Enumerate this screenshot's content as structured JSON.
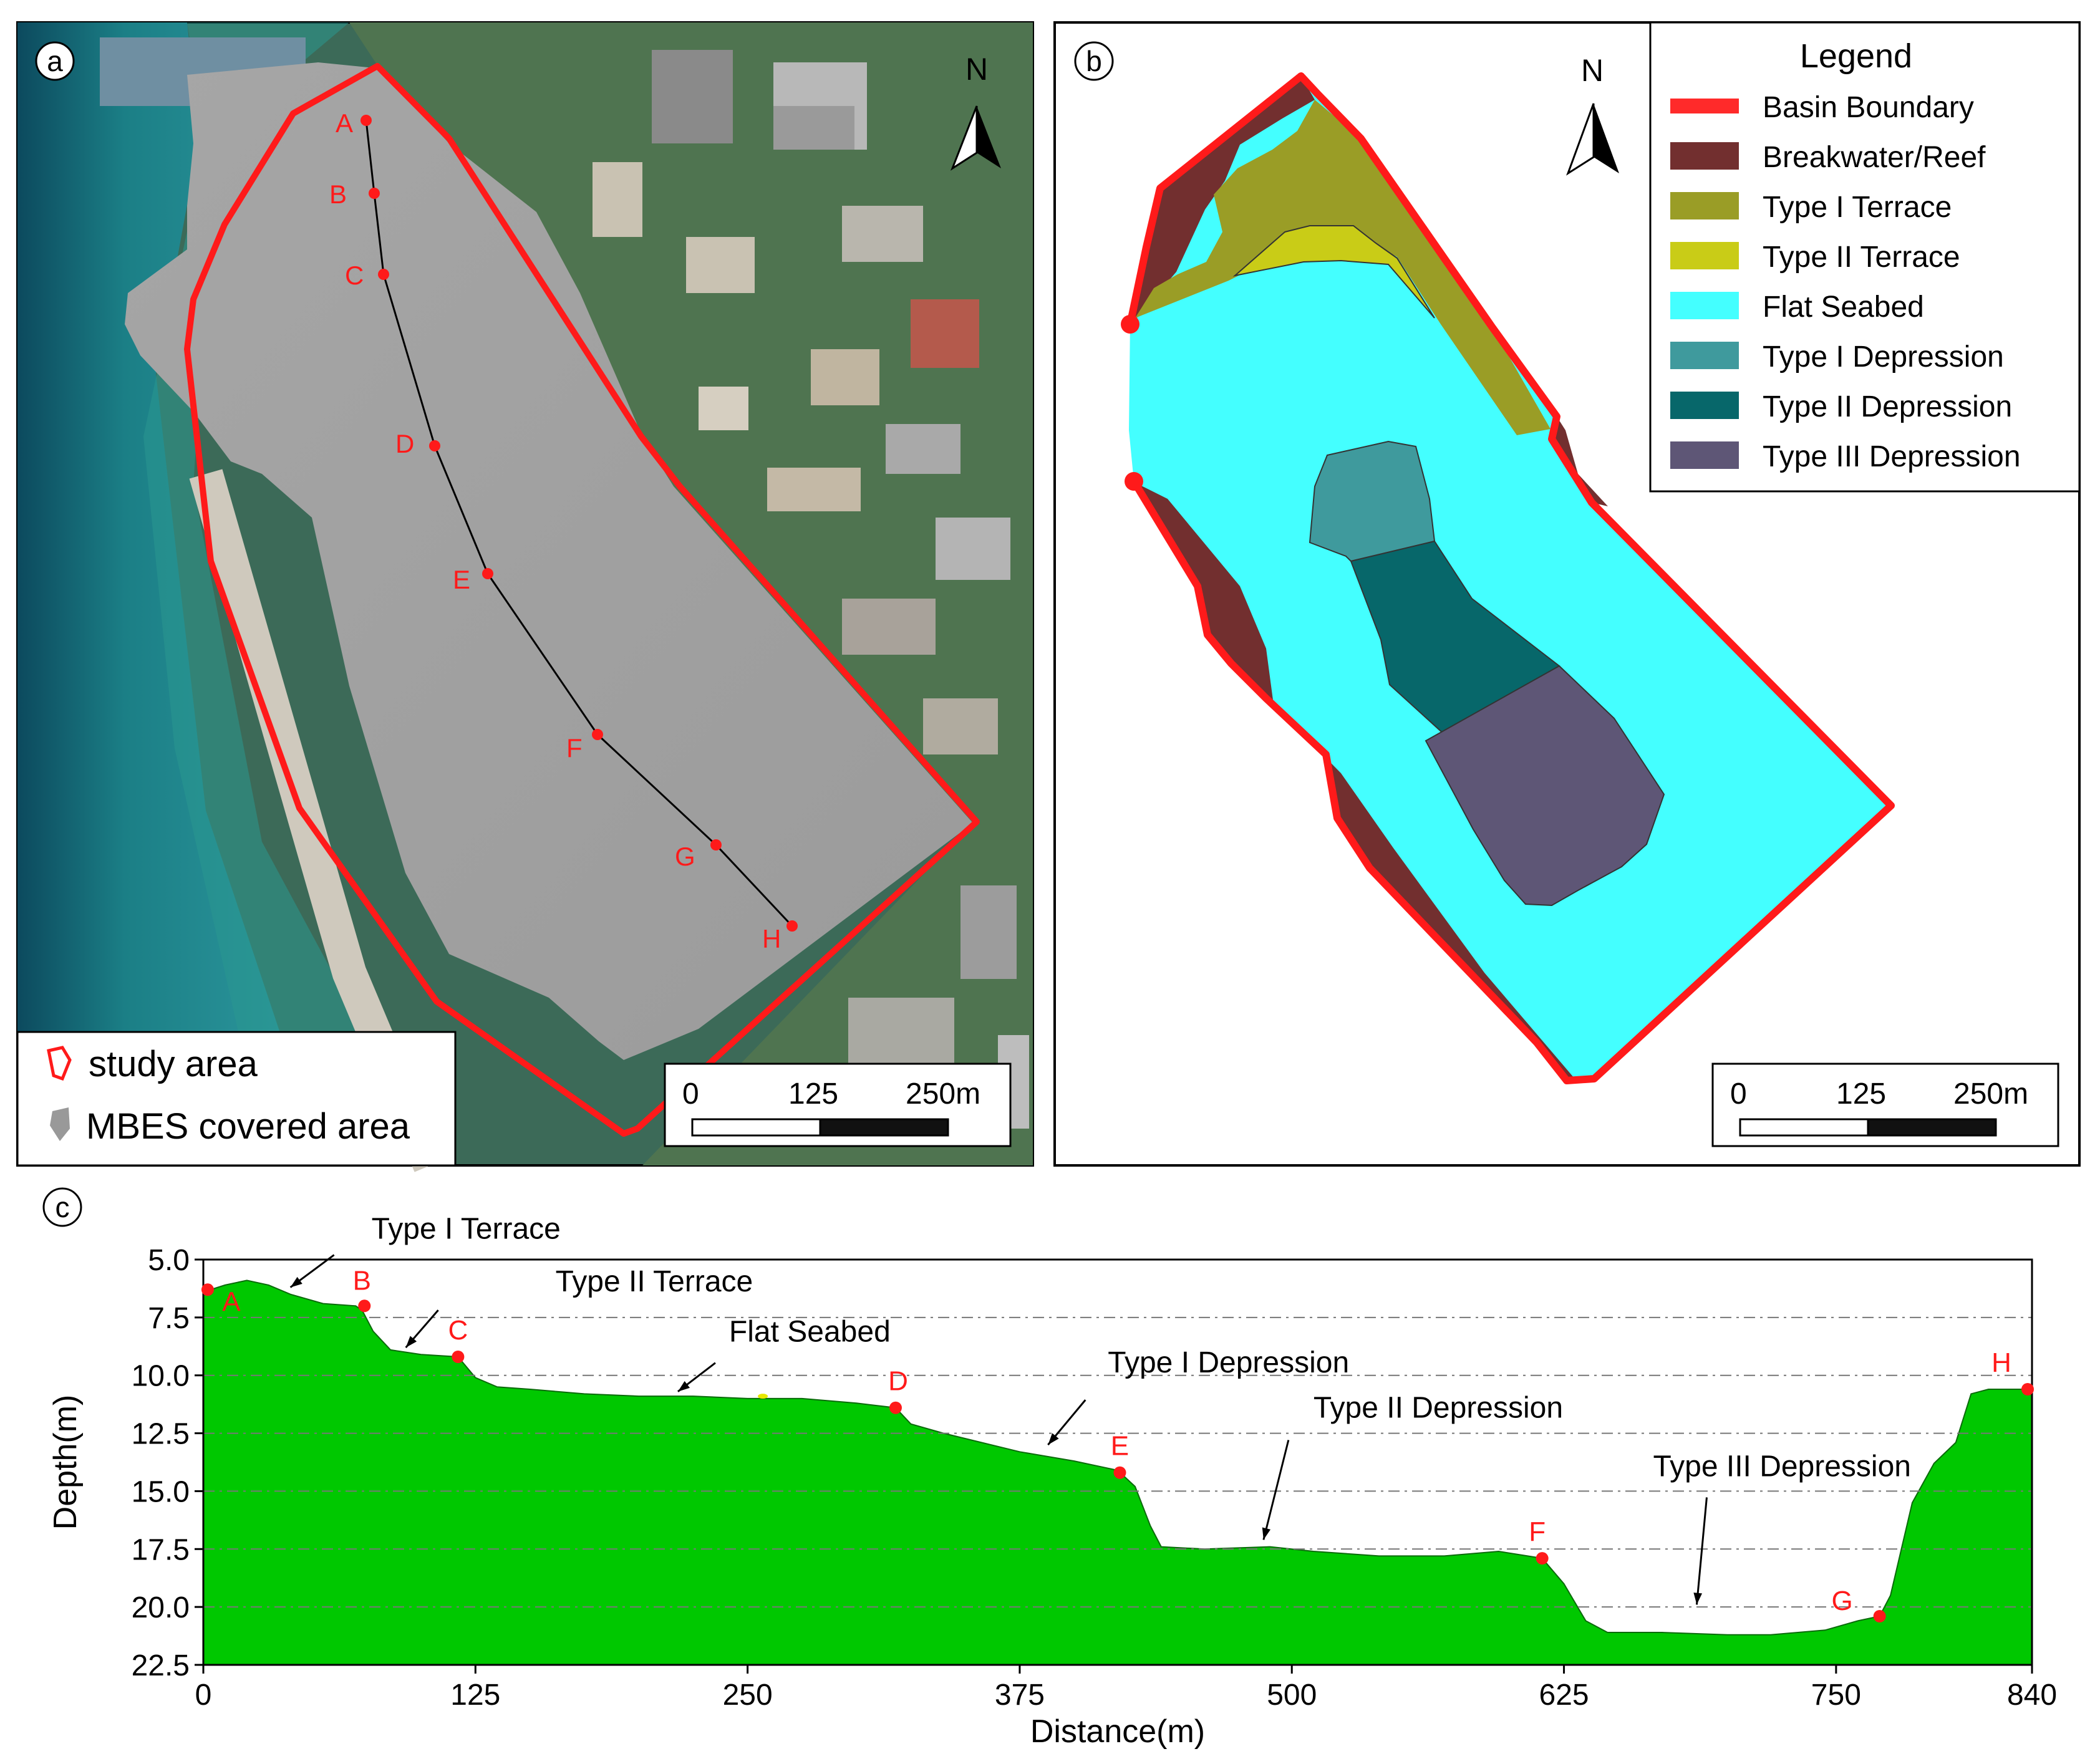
{
  "panel_a": {
    "letter": "a",
    "north_label": "N",
    "points": [
      "A",
      "B",
      "C",
      "D",
      "E",
      "F",
      "G",
      "H"
    ],
    "legend": {
      "study_area": "study area",
      "mbes": "MBES covered area"
    },
    "scale": [
      "0",
      "125",
      "250m"
    ]
  },
  "panel_b": {
    "letter": "b",
    "north_label": "N",
    "legend_title": "Legend",
    "legend_items": [
      {
        "label": "Basin Boundary",
        "color": "#ff2a2a",
        "kind": "line"
      },
      {
        "label": "Breakwater/Reef",
        "color": "#722f2f",
        "kind": "box"
      },
      {
        "label": "Type I Terrace",
        "color": "#9a9d26",
        "kind": "box"
      },
      {
        "label": "Type II Terrace",
        "color": "#c9cc17",
        "kind": "box"
      },
      {
        "label": "Flat Seabed",
        "color": "#44ffff",
        "kind": "box"
      },
      {
        "label": "Type I Depression",
        "color": "#3f9a9d",
        "kind": "box"
      },
      {
        "label": "Type II Depression",
        "color": "#07676a",
        "kind": "box"
      },
      {
        "label": "Type III Depression",
        "color": "#5e5676",
        "kind": "box"
      }
    ],
    "scale": [
      "0",
      "125",
      "250m"
    ]
  },
  "chart_data": {
    "type": "area",
    "panel_letter": "c",
    "xlabel": "Distance(m)",
    "ylabel": "Depth(m)",
    "xlim": [
      0,
      840
    ],
    "ylim": [
      5.0,
      22.5
    ],
    "y_inverted": true,
    "xticks": [
      "0",
      "125",
      "250",
      "375",
      "500",
      "625",
      "750",
      "840"
    ],
    "yticks": [
      "5.0",
      "7.5",
      "10.0",
      "12.5",
      "15.0",
      "17.5",
      "20.0",
      "22.5"
    ],
    "fill_color": "#00c800",
    "profile": [
      [
        0,
        6.4
      ],
      [
        10,
        6.1
      ],
      [
        20,
        5.9
      ],
      [
        30,
        6.1
      ],
      [
        40,
        6.5
      ],
      [
        55,
        6.9
      ],
      [
        70,
        7.0
      ],
      [
        73,
        7.2
      ],
      [
        78,
        8.1
      ],
      [
        86,
        8.9
      ],
      [
        100,
        9.1
      ],
      [
        117,
        9.2
      ],
      [
        125,
        10.1
      ],
      [
        135,
        10.5
      ],
      [
        150,
        10.6
      ],
      [
        175,
        10.8
      ],
      [
        200,
        10.9
      ],
      [
        225,
        10.9
      ],
      [
        250,
        11.0
      ],
      [
        275,
        11.0
      ],
      [
        300,
        11.2
      ],
      [
        318,
        11.4
      ],
      [
        325,
        12.1
      ],
      [
        340,
        12.5
      ],
      [
        375,
        13.3
      ],
      [
        400,
        13.7
      ],
      [
        420,
        14.1
      ],
      [
        428,
        14.8
      ],
      [
        435,
        16.5
      ],
      [
        440,
        17.4
      ],
      [
        460,
        17.5
      ],
      [
        490,
        17.4
      ],
      [
        510,
        17.6
      ],
      [
        540,
        17.8
      ],
      [
        570,
        17.8
      ],
      [
        595,
        17.6
      ],
      [
        615,
        17.9
      ],
      [
        625,
        19.0
      ],
      [
        635,
        20.6
      ],
      [
        645,
        21.1
      ],
      [
        670,
        21.1
      ],
      [
        700,
        21.2
      ],
      [
        720,
        21.2
      ],
      [
        745,
        21.0
      ],
      [
        760,
        20.6
      ],
      [
        770,
        20.4
      ],
      [
        775,
        19.5
      ],
      [
        785,
        15.5
      ],
      [
        795,
        13.8
      ],
      [
        805,
        12.9
      ],
      [
        812,
        10.8
      ],
      [
        820,
        10.6
      ],
      [
        835,
        10.6
      ],
      [
        840,
        10.5
      ]
    ],
    "gridlines_y": [
      7.5,
      10.0,
      12.5,
      15.0,
      17.5,
      20.0
    ],
    "points": [
      {
        "label": "A",
        "x": 2,
        "y": 6.3
      },
      {
        "label": "B",
        "x": 74,
        "y": 7.0
      },
      {
        "label": "C",
        "x": 117,
        "y": 9.2
      },
      {
        "label": "D",
        "x": 318,
        "y": 11.4
      },
      {
        "label": "E",
        "x": 421,
        "y": 14.2
      },
      {
        "label": "F",
        "x": 615,
        "y": 17.9
      },
      {
        "label": "G",
        "x": 770,
        "y": 20.4
      },
      {
        "label": "H",
        "x": 838,
        "y": 10.6
      }
    ],
    "annotations": [
      {
        "text": "Type I Terrace",
        "x": 40,
        "y": 6.2
      },
      {
        "text": "Type II Terrace",
        "x": 93,
        "y": 8.8
      },
      {
        "text": "Flat Seabed",
        "x": 218,
        "y": 10.7
      },
      {
        "text": "Type I Depression",
        "x": 388,
        "y": 13.0
      },
      {
        "text": "Type II Depression",
        "x": 487,
        "y": 17.1
      },
      {
        "text": "Type III Depression",
        "x": 686,
        "y": 19.9
      }
    ]
  }
}
